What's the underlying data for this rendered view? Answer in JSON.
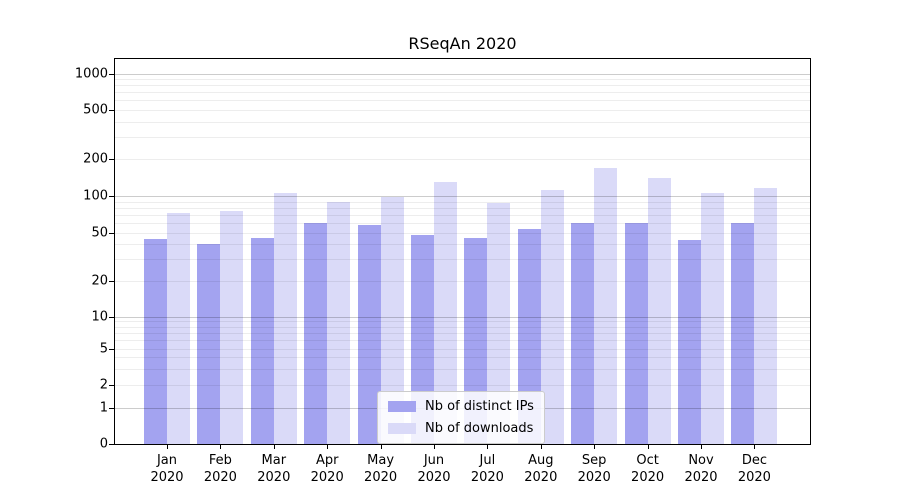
{
  "chart_data": {
    "type": "bar",
    "title": "RSeqAn 2020",
    "xlabel": "",
    "ylabel": "",
    "categories": [
      "Jan 2020",
      "Feb 2020",
      "Mar 2020",
      "Apr 2020",
      "May 2020",
      "Jun 2020",
      "Jul 2020",
      "Aug 2020",
      "Sep 2020",
      "Oct 2020",
      "Nov 2020",
      "Dec 2020"
    ],
    "x_tick_months": [
      "Jan",
      "Feb",
      "Mar",
      "Apr",
      "May",
      "Jun",
      "Jul",
      "Aug",
      "Sep",
      "Oct",
      "Nov",
      "Dec"
    ],
    "x_tick_year": "2020",
    "series": [
      {
        "key": "distinct-ips",
        "name": "Nb of distinct IPs",
        "color": "#a3a3f0",
        "values": [
          44,
          40,
          45,
          60,
          58,
          48,
          45,
          53,
          60,
          60,
          43,
          60
        ]
      },
      {
        "key": "downloads",
        "name": "Nb of downloads",
        "color": "#dadaf8",
        "values": [
          72,
          75,
          106,
          89,
          98,
          131,
          88,
          112,
          169,
          139,
          105,
          116
        ]
      }
    ],
    "y_ticks": [
      0,
      1,
      2,
      5,
      10,
      20,
      50,
      100,
      200,
      500,
      1000
    ],
    "y_scale": "log-like (log above 10, compressed 1-10, linear 0-1)",
    "ylim": [
      0,
      1300
    ],
    "grid": "horizontal major+minor gridlines drawn over bars",
    "legend_position": "lower center"
  }
}
